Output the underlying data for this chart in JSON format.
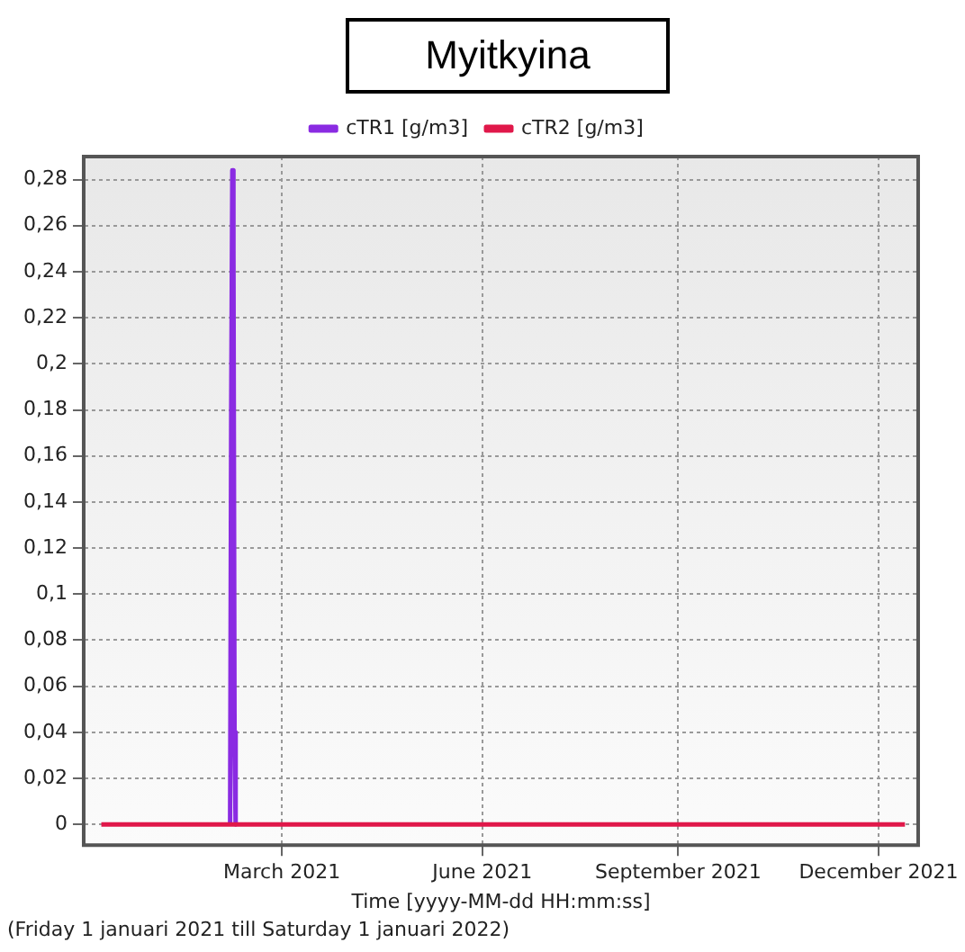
{
  "chart_data": {
    "type": "line",
    "title": "Myitkyina",
    "xlabel": "Time [yyyy-MM-dd HH:mm:ss]",
    "annotations": [
      "(Friday 1 januari 2021 till Saturday 1 januari 2022)"
    ],
    "series": [
      {
        "name": "cTR1 [g/m3]",
        "color": "#8a2be2",
        "x": [
          "2021-02-28T12:00",
          "2021-03-01",
          "2021-03-01T12:00",
          "2021-03-02",
          "2021-03-02T12:00",
          "2021-03-03"
        ],
        "values": [
          0,
          0.18,
          0.284,
          0.25,
          0.04,
          0
        ]
      },
      {
        "name": "cTR2 [g/m3]",
        "color": "#e0184a",
        "x": [
          "2021-01-01",
          "2022-01-01"
        ],
        "values": [
          0,
          0
        ]
      }
    ],
    "xlim": [
      "2020-12-24",
      "2022-01-07"
    ],
    "xticks": [
      {
        "value": "2021-03-24",
        "label": "March 2021"
      },
      {
        "value": "2021-06-23",
        "label": "June 2021"
      },
      {
        "value": "2021-09-20",
        "label": "September 2021"
      },
      {
        "value": "2021-12-20",
        "label": "December 2021"
      }
    ],
    "ylim": [
      -0.009,
      0.29
    ],
    "yticks": [
      0,
      {
        "value": 0.02,
        "label": "0,02"
      },
      {
        "value": 0.04,
        "label": "0,04"
      },
      {
        "value": 0.06,
        "label": "0,06"
      },
      {
        "value": 0.08,
        "label": "0,08"
      },
      {
        "value": 0.1,
        "label": "0,1"
      },
      {
        "value": 0.12,
        "label": "0,12"
      },
      {
        "value": 0.14,
        "label": "0,14"
      },
      {
        "value": 0.16,
        "label": "0,16"
      },
      {
        "value": 0.18,
        "label": "0,18"
      },
      {
        "value": 0.2,
        "label": "0,2"
      },
      {
        "value": 0.22,
        "label": "0,22"
      },
      {
        "value": 0.24,
        "label": "0,24"
      },
      {
        "value": 0.26,
        "label": "0,26"
      },
      {
        "value": 0.28,
        "label": "0,28"
      }
    ],
    "grid": true,
    "legend": "top",
    "marker": "none",
    "line_style": "solid"
  }
}
